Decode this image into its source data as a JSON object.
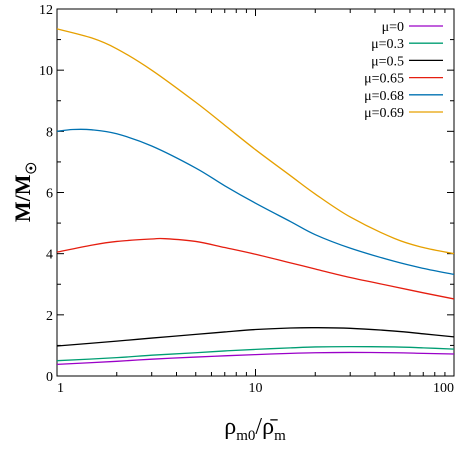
{
  "chart_data": {
    "type": "line",
    "title": "",
    "xlabel": "ρ_m0/ρ̄_m",
    "ylabel": "M/M_☉",
    "x_scale": "log",
    "xlim": [
      1,
      100
    ],
    "ylim": [
      0,
      12
    ],
    "x_ticks": [
      "1",
      "10",
      "100"
    ],
    "y_ticks": [
      "0",
      "2",
      "4",
      "6",
      "8",
      "10",
      "12"
    ],
    "legend_position": "top-right",
    "grid": false,
    "series": [
      {
        "name": "μ=0",
        "color": "#9a00c8",
        "x": [
          1,
          2,
          3,
          5,
          7,
          10,
          15,
          20,
          30,
          50,
          70,
          100
        ],
        "y": [
          0.38,
          0.48,
          0.55,
          0.62,
          0.66,
          0.7,
          0.74,
          0.76,
          0.77,
          0.76,
          0.74,
          0.72
        ]
      },
      {
        "name": "μ=0.3",
        "color": "#009e73",
        "x": [
          1,
          2,
          3,
          5,
          7,
          10,
          15,
          20,
          30,
          50,
          70,
          100
        ],
        "y": [
          0.5,
          0.6,
          0.68,
          0.76,
          0.82,
          0.87,
          0.92,
          0.95,
          0.96,
          0.95,
          0.92,
          0.88
        ]
      },
      {
        "name": "μ=0.5",
        "color": "#000000",
        "x": [
          1,
          2,
          3,
          5,
          7,
          10,
          15,
          20,
          30,
          50,
          70,
          100
        ],
        "y": [
          0.98,
          1.14,
          1.24,
          1.36,
          1.44,
          1.52,
          1.57,
          1.58,
          1.56,
          1.47,
          1.38,
          1.28
        ]
      },
      {
        "name": "μ=0.65",
        "color": "#e51e10",
        "x": [
          1,
          1.5,
          2,
          3,
          3.5,
          5,
          7,
          10,
          15,
          20,
          30,
          50,
          70,
          100
        ],
        "y": [
          4.05,
          4.28,
          4.4,
          4.48,
          4.49,
          4.4,
          4.2,
          3.98,
          3.7,
          3.5,
          3.22,
          2.92,
          2.72,
          2.52
        ]
      },
      {
        "name": "μ=0.68",
        "color": "#0072b2",
        "x": [
          1,
          1.2,
          1.5,
          2,
          3,
          5,
          7,
          10,
          15,
          20,
          30,
          50,
          70,
          100
        ],
        "y": [
          8.0,
          8.06,
          8.05,
          7.92,
          7.52,
          6.8,
          6.22,
          5.65,
          5.05,
          4.62,
          4.18,
          3.75,
          3.52,
          3.32
        ]
      },
      {
        "name": "μ=0.69",
        "color": "#e6a000",
        "x": [
          1,
          1.5,
          2,
          3,
          5,
          7,
          10,
          15,
          20,
          30,
          50,
          70,
          100
        ],
        "y": [
          11.35,
          11.05,
          10.7,
          10.0,
          8.95,
          8.2,
          7.4,
          6.55,
          5.95,
          5.2,
          4.5,
          4.2,
          4.0
        ]
      }
    ]
  }
}
